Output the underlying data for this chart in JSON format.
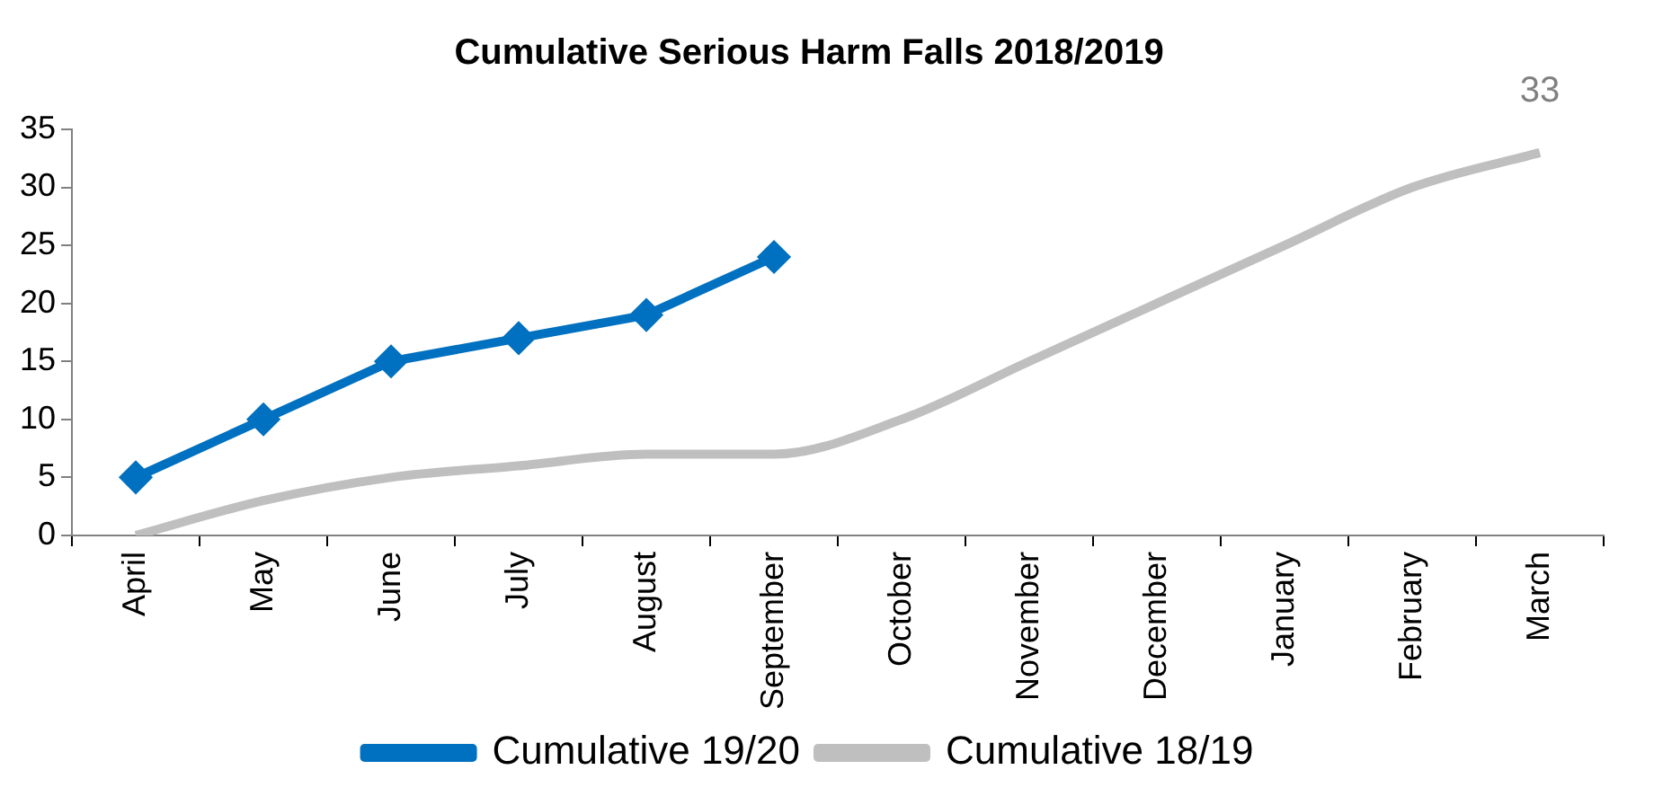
{
  "chart_data": {
    "type": "line",
    "title": "Cumulative Serious Harm Falls 2018/2019",
    "categories": [
      "April",
      "May",
      "June",
      "July",
      "August",
      "September",
      "October",
      "November",
      "December",
      "January",
      "February",
      "March"
    ],
    "ylim": [
      0,
      35
    ],
    "yticks": [
      0,
      5,
      10,
      15,
      20,
      25,
      30,
      35
    ],
    "legend": "bottom",
    "series": [
      {
        "name": "Cumulative 19/20",
        "color": "#0070c0",
        "marker": "diamond",
        "values": [
          5,
          10,
          15,
          17,
          19,
          24,
          null,
          null,
          null,
          null,
          null,
          null
        ]
      },
      {
        "name": "Cumulative 18/19",
        "color": "#bfbfbf",
        "marker": "none",
        "values": [
          0,
          3,
          5,
          6,
          7,
          7,
          10,
          15,
          20,
          25,
          30,
          33
        ],
        "value_labels": [
          null,
          null,
          null,
          null,
          null,
          null,
          null,
          null,
          null,
          null,
          null,
          "33"
        ]
      }
    ]
  }
}
